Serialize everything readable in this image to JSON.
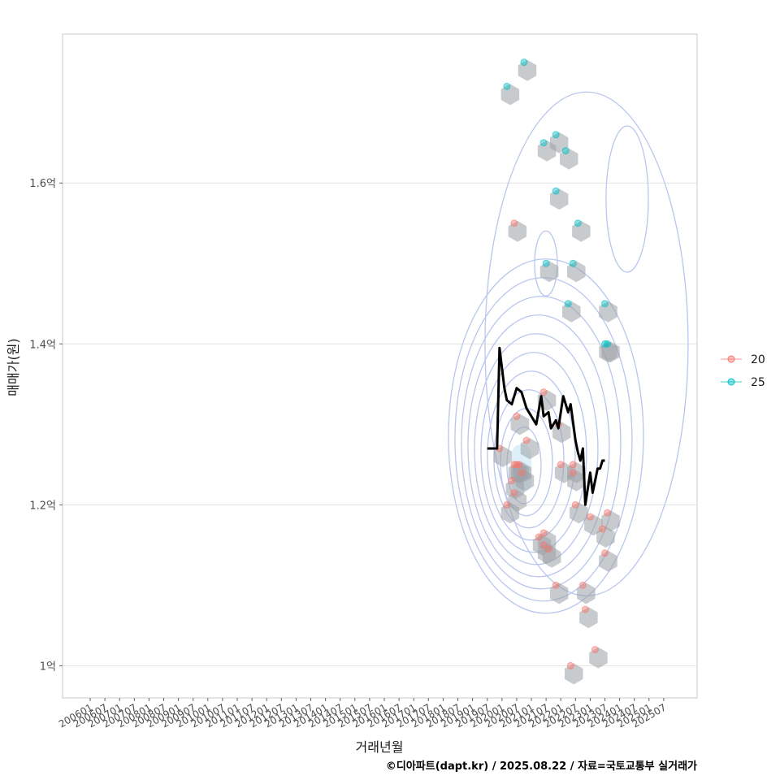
{
  "chart_data": {
    "type": "scatter",
    "xlabel": "거래년월",
    "ylabel": "매매가(원)",
    "caption": "©디아파트(dapt.kr) / 2025.08.22 / 자료=국토교통부 실거래가",
    "x_tick_labels": [
      "200601",
      "200607",
      "200701",
      "200707",
      "200801",
      "200807",
      "200901",
      "200907",
      "201001",
      "201007",
      "201101",
      "201107",
      "201201",
      "201207",
      "201301",
      "201307",
      "201401",
      "201407",
      "201501",
      "201507",
      "201601",
      "201607",
      "201701",
      "201707",
      "201801",
      "201807",
      "201901",
      "201907",
      "202001",
      "202007",
      "202101",
      "202107",
      "202201",
      "202207",
      "202301",
      "202307",
      "202401",
      "202407",
      "202501",
      "202507"
    ],
    "y_ticks": [
      {
        "value": 1.0,
        "label": "1억"
      },
      {
        "value": 1.2,
        "label": "1.2억"
      },
      {
        "value": 1.4,
        "label": "1.4억"
      },
      {
        "value": 1.6,
        "label": "1.6억"
      }
    ],
    "ylim": [
      0.96,
      1.785
    ],
    "y_unit": "억원",
    "grid": true,
    "legend_position": "right",
    "series": [
      {
        "name": "20",
        "color": "#F8766D",
        "points": [
          [
            "2019-12",
            1.27
          ],
          [
            "2020-03",
            1.2
          ],
          [
            "2020-05",
            1.23
          ],
          [
            "2020-06",
            1.215
          ],
          [
            "2020-06",
            1.25
          ],
          [
            "2020-07",
            1.25
          ],
          [
            "2020-08",
            1.25
          ],
          [
            "2020-09",
            1.24
          ],
          [
            "2020-06",
            1.55
          ],
          [
            "2020-07",
            1.31
          ],
          [
            "2020-11",
            1.28
          ],
          [
            "2021-04",
            1.16
          ],
          [
            "2021-06",
            1.165
          ],
          [
            "2021-06",
            1.15
          ],
          [
            "2021-08",
            1.145
          ],
          [
            "2021-06",
            1.34
          ],
          [
            "2021-11",
            1.1
          ],
          [
            "2021-12",
            1.3
          ],
          [
            "2022-01",
            1.25
          ],
          [
            "2022-06",
            1.24
          ],
          [
            "2022-06",
            1.25
          ],
          [
            "2022-07",
            1.2
          ],
          [
            "2022-10",
            1.1
          ],
          [
            "2022-11",
            1.07
          ],
          [
            "2023-01",
            1.185
          ],
          [
            "2023-03",
            1.02
          ],
          [
            "2023-06",
            1.17
          ],
          [
            "2023-07",
            1.14
          ],
          [
            "2023-08",
            1.19
          ],
          [
            "2022-05",
            1.0
          ]
        ]
      },
      {
        "name": "25",
        "color": "#00BFC4",
        "points": [
          [
            "2020-03",
            1.72
          ],
          [
            "2020-10",
            1.75
          ],
          [
            "2021-06",
            1.65
          ],
          [
            "2021-11",
            1.66
          ],
          [
            "2022-03",
            1.64
          ],
          [
            "2021-11",
            1.59
          ],
          [
            "2021-07",
            1.5
          ],
          [
            "2022-08",
            1.55
          ],
          [
            "2022-06",
            1.5
          ],
          [
            "2022-04",
            1.45
          ],
          [
            "2023-07",
            1.45
          ],
          [
            "2023-07",
            1.4
          ],
          [
            "2023-08",
            1.4
          ]
        ]
      }
    ],
    "moving_average": {
      "color": "#000000",
      "points": [
        [
          "2019-07",
          1.27
        ],
        [
          "2019-11",
          1.27
        ],
        [
          "2019-12",
          1.395
        ],
        [
          "2020-01",
          1.37
        ],
        [
          "2020-02",
          1.345
        ],
        [
          "2020-03",
          1.33
        ],
        [
          "2020-05",
          1.325
        ],
        [
          "2020-07",
          1.345
        ],
        [
          "2020-09",
          1.34
        ],
        [
          "2020-11",
          1.32
        ],
        [
          "2021-01",
          1.31
        ],
        [
          "2021-03",
          1.3
        ],
        [
          "2021-05",
          1.335
        ],
        [
          "2021-06",
          1.31
        ],
        [
          "2021-08",
          1.315
        ],
        [
          "2021-09",
          1.295
        ],
        [
          "2021-11",
          1.305
        ],
        [
          "2021-12",
          1.295
        ],
        [
          "2022-02",
          1.335
        ],
        [
          "2022-04",
          1.315
        ],
        [
          "2022-05",
          1.325
        ],
        [
          "2022-07",
          1.28
        ],
        [
          "2022-08",
          1.265
        ],
        [
          "2022-09",
          1.255
        ],
        [
          "2022-10",
          1.27
        ],
        [
          "2022-11",
          1.2
        ],
        [
          "2023-01",
          1.24
        ],
        [
          "2023-02",
          1.215
        ],
        [
          "2023-04",
          1.245
        ],
        [
          "2023-05",
          1.245
        ],
        [
          "2023-06",
          1.255
        ],
        [
          "2023-07",
          1.255
        ]
      ]
    },
    "density_contour_center": [
      "2020-09",
      1.245
    ],
    "legend": [
      "20",
      "25"
    ]
  }
}
